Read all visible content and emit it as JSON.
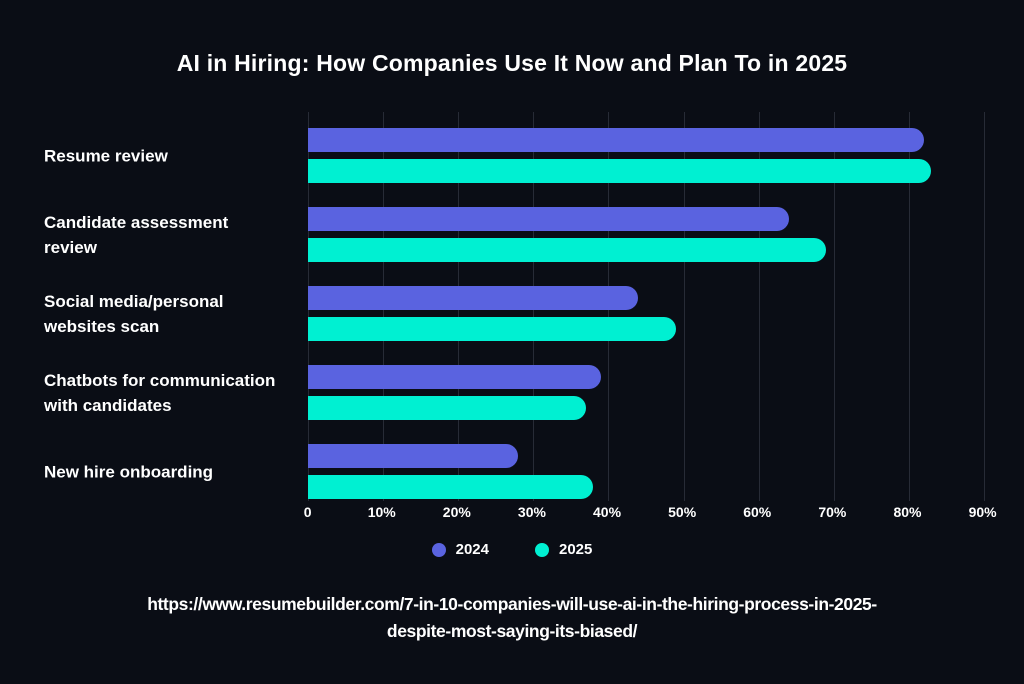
{
  "title": "AI in Hiring: How Companies Use It Now and Plan To in 2025",
  "colors": {
    "background": "#0a0d15",
    "series_2024": "#5a63e0",
    "series_2025": "#00f0d2",
    "gridline": "#272b36",
    "text": "#ffffff"
  },
  "chart_data": {
    "type": "bar",
    "orientation": "horizontal",
    "title": "AI in Hiring: How Companies Use It Now and Plan To in 2025",
    "categories": [
      "Resume review",
      "Candidate assessment review",
      "Social media/personal websites scan",
      "Chatbots for communication with candidates",
      "New hire onboarding"
    ],
    "category_display_lines": [
      [
        "Resume review"
      ],
      [
        "Candidate assessment",
        "review"
      ],
      [
        "Social media/personal",
        "websites scan"
      ],
      [
        "Chatbots for communication",
        "with candidates"
      ],
      [
        "New hire onboarding"
      ]
    ],
    "series": [
      {
        "name": "2024",
        "values": [
          82,
          64,
          44,
          39,
          28
        ],
        "color": "#5a63e0"
      },
      {
        "name": "2025",
        "values": [
          83,
          69,
          49,
          37,
          38
        ],
        "color": "#00f0d2"
      }
    ],
    "x_ticks": [
      "0",
      "10%",
      "20%",
      "30%",
      "40%",
      "50%",
      "60%",
      "70%",
      "80%",
      "90%"
    ],
    "xlim": [
      0,
      90
    ],
    "unit": "%",
    "grid": "vertical",
    "legend_position": "bottom"
  },
  "legend": {
    "items": [
      {
        "label": "2024",
        "color": "#5a63e0"
      },
      {
        "label": "2025",
        "color": "#00f0d2"
      }
    ]
  },
  "source": {
    "line1": "https://www.resumebuilder.com/7-in-10-companies-will-use-ai-in-the-hiring-process-in-2025-",
    "line2": "despite-most-saying-its-biased/",
    "url": "https://www.resumebuilder.com/7-in-10-companies-will-use-ai-in-the-hiring-process-in-2025-despite-most-saying-its-biased/"
  }
}
